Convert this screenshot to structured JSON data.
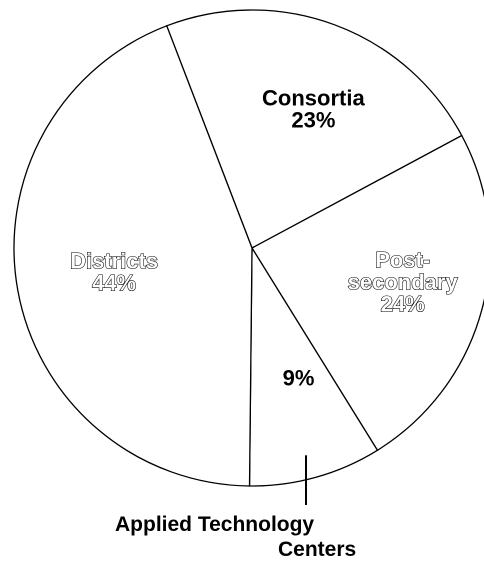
{
  "chart_data": {
    "type": "pie",
    "title": "",
    "slices": [
      {
        "label": "Consortia",
        "value": 23,
        "value_label": "23%",
        "style": "solid"
      },
      {
        "label": "Post-\nsecondary",
        "value": 24,
        "value_label": "24%",
        "style": "outline"
      },
      {
        "label": "",
        "value": 9,
        "value_label": "9%",
        "style": "solid"
      },
      {
        "label": "Districts",
        "value": 44,
        "value_label": "44%",
        "style": "outline"
      }
    ],
    "callout": {
      "slice_index": 2,
      "line1": "Applied Technology",
      "line2": "Centers"
    }
  }
}
